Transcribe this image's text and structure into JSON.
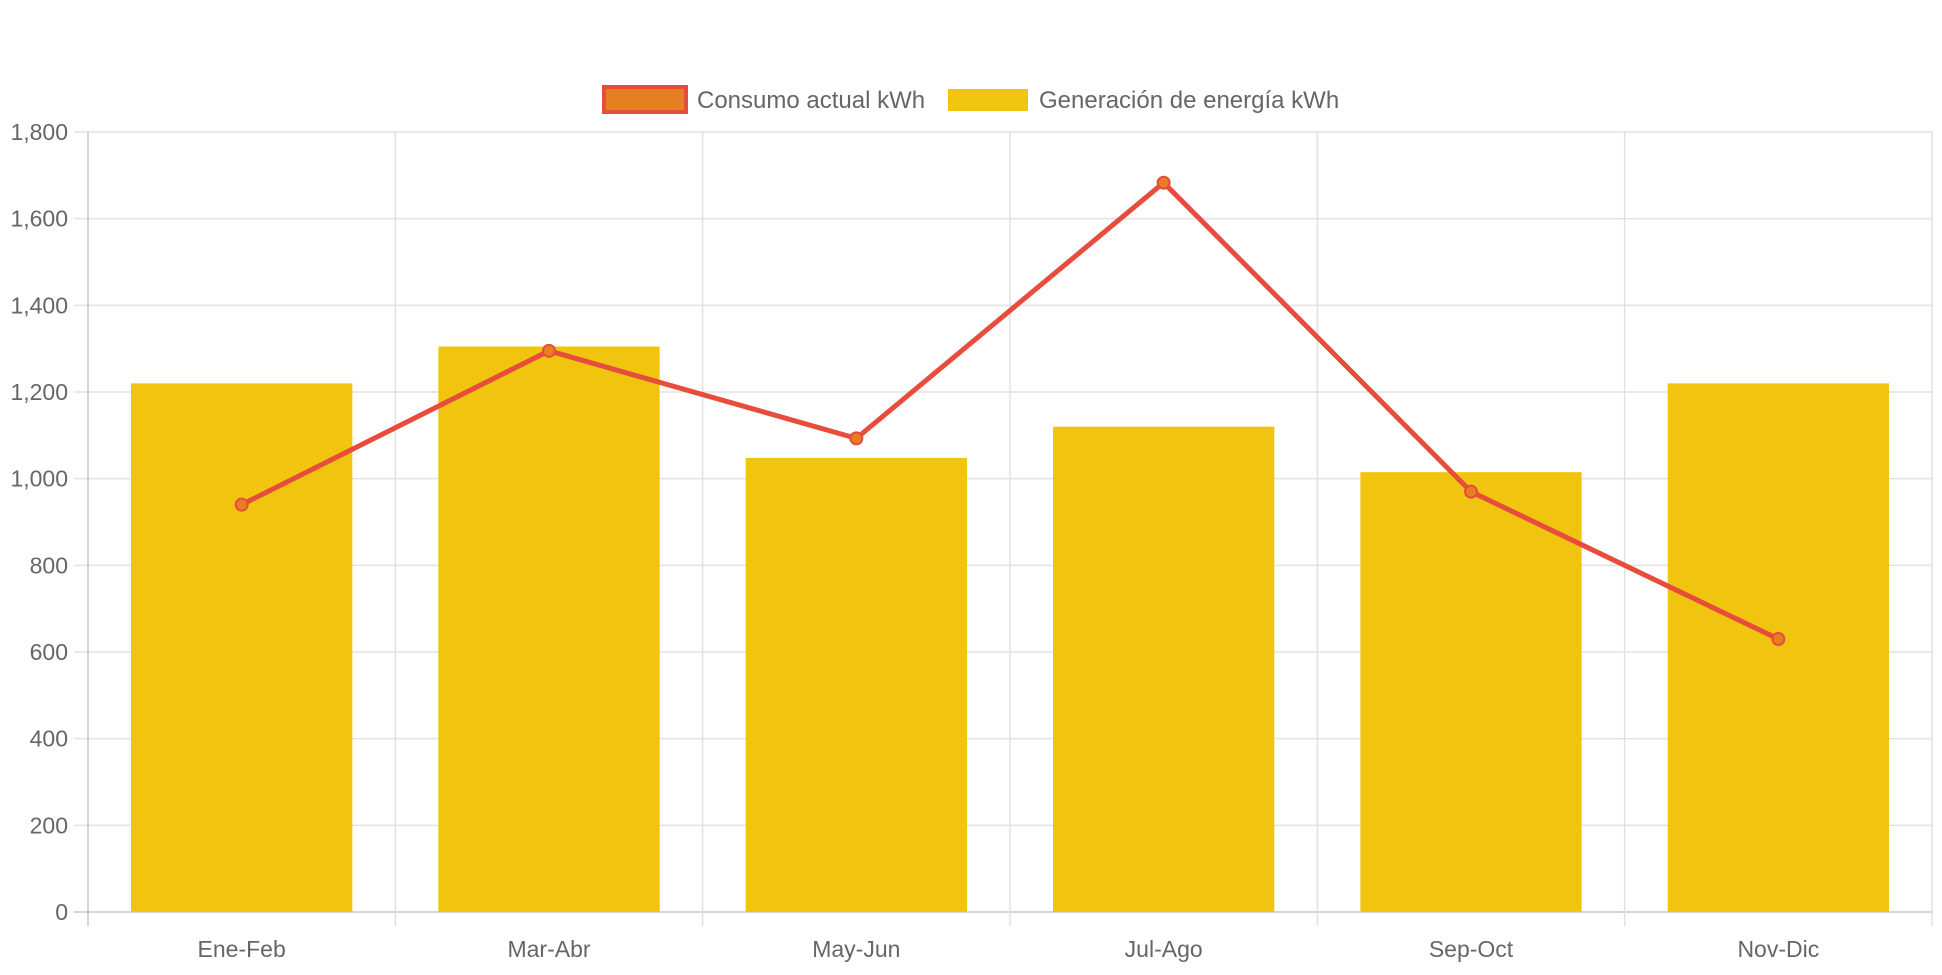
{
  "chart_data": {
    "type": "bar",
    "categories": [
      "Ene-Feb",
      "Mar-Abr",
      "May-Jun",
      "Jul-Ago",
      "Sep-Oct",
      "Nov-Dic"
    ],
    "series": [
      {
        "name": "Consumo actual kWh",
        "type": "line",
        "values": [
          940,
          1295,
          1093,
          1683,
          970,
          630
        ],
        "color": "#E74C3C",
        "point_color": "#E67E22"
      },
      {
        "name": "Generación de energía kWh",
        "type": "bar",
        "values": [
          1220,
          1305,
          1048,
          1120,
          1015,
          1220
        ],
        "color": "#F1C40F"
      }
    ],
    "ylim": [
      0,
      1800
    ],
    "yticks": [
      "0",
      "200",
      "400",
      "600",
      "800",
      "1,000",
      "1,200",
      "1,400",
      "1,600",
      "1,800"
    ],
    "grid": true,
    "legend_position": "top-center",
    "title": "",
    "xlabel": "",
    "ylabel": ""
  }
}
